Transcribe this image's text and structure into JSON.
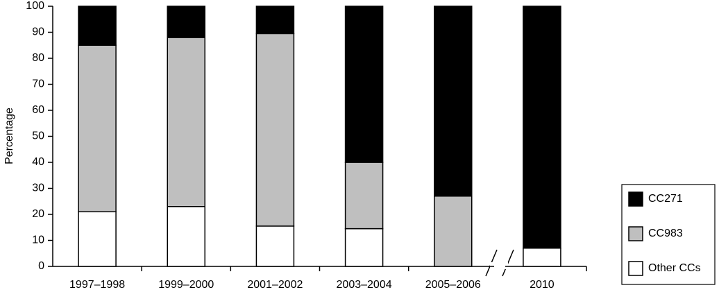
{
  "chart_data": {
    "type": "stacked-bar",
    "y_label": "Percentage",
    "categories": [
      "1997–1998",
      "1999–2000",
      "2001–2002",
      "2003–2004",
      "2005–2006",
      "2010"
    ],
    "series": [
      {
        "name": "Other CCs",
        "color": "#ffffff",
        "values": [
          21,
          23,
          15.5,
          14.5,
          0,
          7
        ]
      },
      {
        "name": "CC983",
        "color": "#bfbfbf",
        "values": [
          64,
          65,
          74,
          25.5,
          27,
          0
        ]
      },
      {
        "name": "CC271",
        "color": "#000000",
        "values": [
          15,
          12,
          10.5,
          60,
          73,
          93
        ]
      }
    ],
    "ylim": [
      0,
      100
    ],
    "yticks": [
      0,
      10,
      20,
      30,
      40,
      50,
      60,
      70,
      80,
      90,
      100
    ],
    "grid": false
  }
}
